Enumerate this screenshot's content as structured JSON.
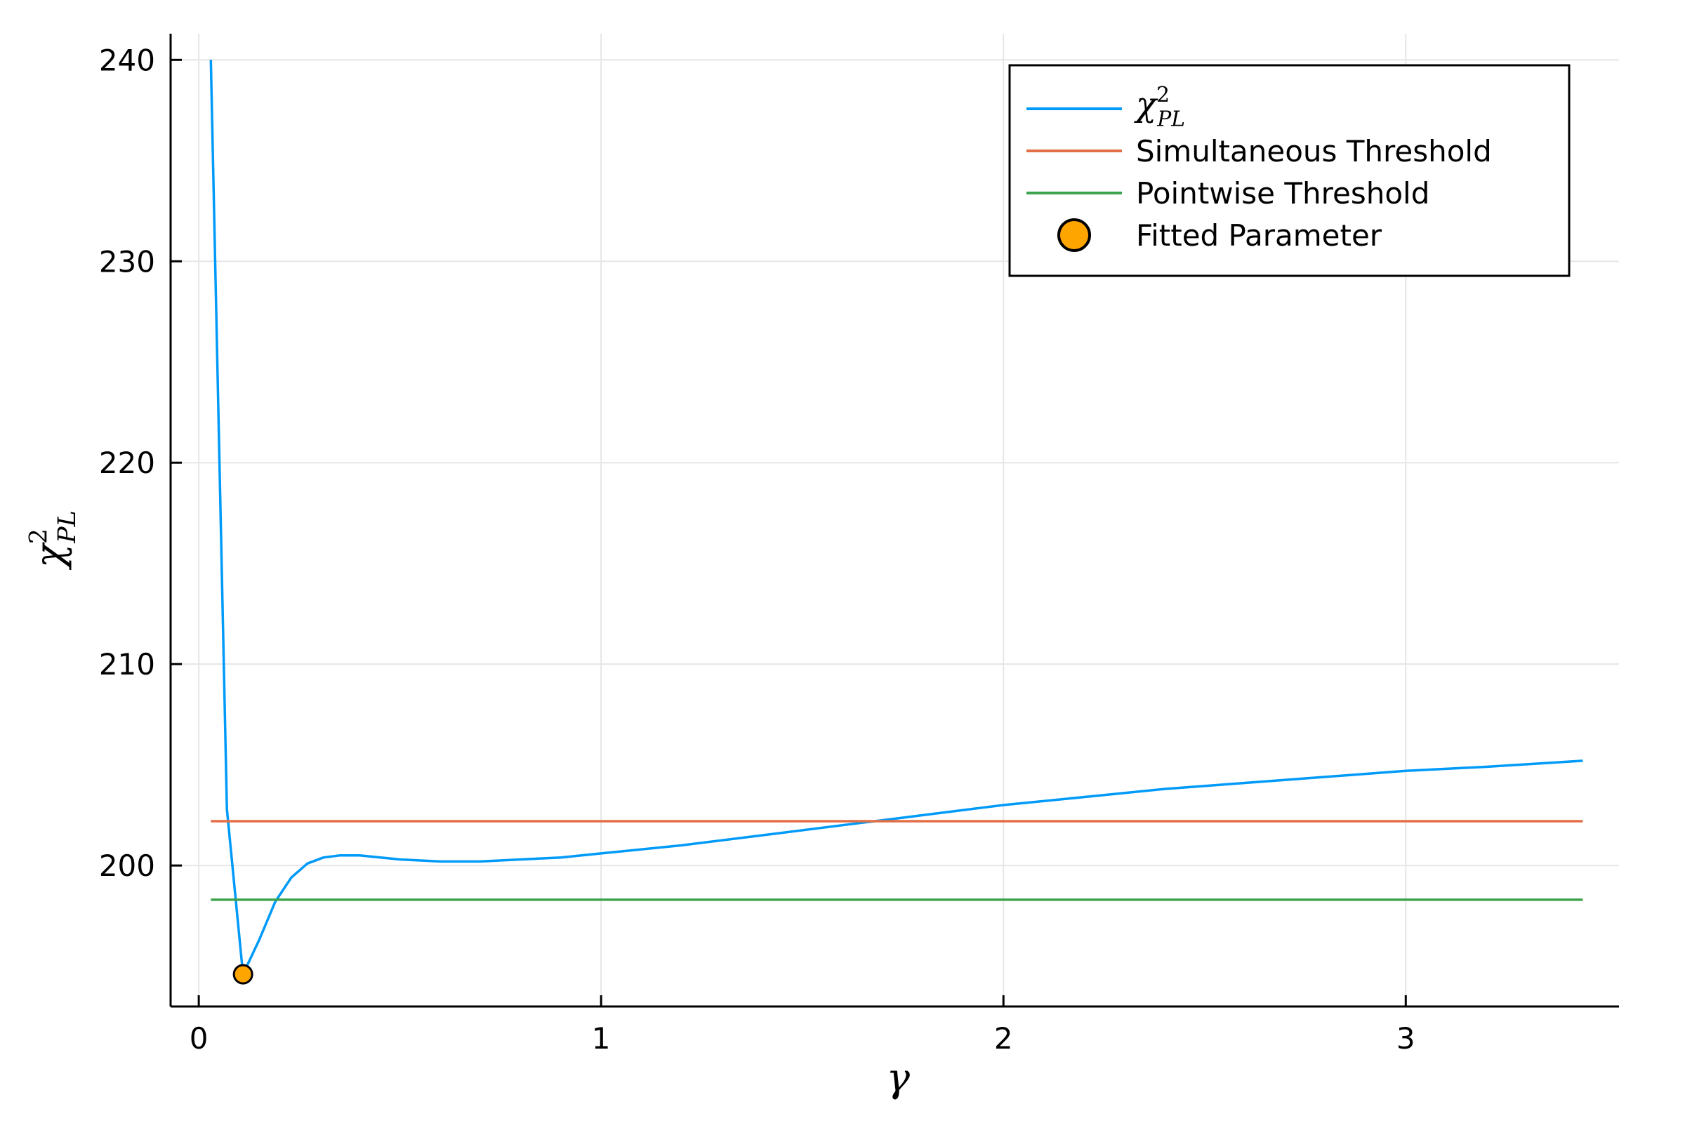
{
  "chart_data": {
    "type": "line",
    "title": "",
    "xlabel": {
      "base": "γ"
    },
    "ylabel": {
      "base": "χ",
      "sup": "2",
      "sub": "PL"
    },
    "xlim": [
      -0.07,
      3.53
    ],
    "ylim": [
      193.0,
      241.3
    ],
    "x_ticks": [
      0,
      1,
      2,
      3
    ],
    "x_tick_labels": [
      "0",
      "1",
      "2",
      "3"
    ],
    "y_ticks": [
      200,
      210,
      220,
      230,
      240
    ],
    "y_tick_labels": [
      "200",
      "210",
      "220",
      "230",
      "240"
    ],
    "grid": true,
    "legend_position": "top-right",
    "series": [
      {
        "name": {
          "base": "χ",
          "sup": "2",
          "sub": "PL"
        },
        "kind": "line",
        "color": "#009af9",
        "x": [
          0.03,
          0.07,
          0.11,
          0.15,
          0.19,
          0.23,
          0.27,
          0.31,
          0.35,
          0.4,
          0.5,
          0.6,
          0.7,
          0.8,
          0.9,
          1.0,
          1.2,
          1.4,
          1.6,
          1.8,
          2.0,
          2.2,
          2.4,
          2.6,
          2.8,
          3.0,
          3.2,
          3.44
        ],
        "y": [
          240.0,
          202.8,
          194.6,
          196.3,
          198.2,
          199.4,
          200.1,
          200.4,
          200.5,
          200.5,
          200.3,
          200.2,
          200.2,
          200.3,
          200.4,
          200.6,
          201.0,
          201.5,
          202.0,
          202.5,
          203.0,
          203.4,
          203.8,
          204.1,
          204.4,
          204.7,
          204.9,
          205.2
        ]
      },
      {
        "name": "Simultaneous Threshold",
        "kind": "hline",
        "color": "#e26f46",
        "x": [
          0.03,
          3.44
        ],
        "y": [
          202.2,
          202.2
        ]
      },
      {
        "name": "Pointwise Threshold",
        "kind": "hline",
        "color": "#3da44d",
        "x": [
          0.03,
          3.44
        ],
        "y": [
          198.3,
          198.3
        ]
      },
      {
        "name": "Fitted Parameter",
        "kind": "scatter",
        "color": "#ffa500",
        "x": [
          0.11
        ],
        "y": [
          194.6
        ]
      }
    ]
  }
}
